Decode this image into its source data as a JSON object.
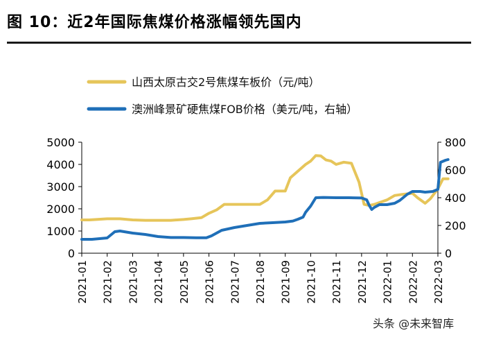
{
  "figure_title": "图  10：近2年国际焦煤价格涨幅领先国内",
  "watermark": "头条 @未来智库",
  "chart_data": {
    "type": "line",
    "title": "图  10：近2年国际焦煤价格涨幅领先国内",
    "x_categories": [
      "2021-01",
      "2021-02",
      "2021-03",
      "2021-04",
      "2021-05",
      "2021-06",
      "2021-07",
      "2021-08",
      "2021-09",
      "2021-10",
      "2021-11",
      "2021-12",
      "2022-01",
      "2022-02",
      "2022-03"
    ],
    "left_axis": {
      "min": 0,
      "max": 5000,
      "ticks": [
        "0",
        "1000",
        "2000",
        "3000",
        "4000",
        "5000"
      ]
    },
    "right_axis": {
      "min": 0,
      "max": 800,
      "ticks": [
        "0",
        "200",
        "400",
        "600",
        "800"
      ]
    },
    "legend_position": "top-left",
    "series": [
      {
        "name": "山西太原古交2号焦煤车板价（元/吨）",
        "axis": "left",
        "color": "#E6C55A",
        "x": [
          0,
          0.3,
          1,
          1.5,
          2,
          2.5,
          3,
          3.5,
          4,
          4.3,
          4.7,
          5,
          5.3,
          5.6,
          6,
          6.5,
          7,
          7.3,
          7.6,
          8,
          8.2,
          8.5,
          8.8,
          9,
          9.2,
          9.4,
          9.6,
          9.8,
          10,
          10.3,
          10.6,
          10.9,
          11.1,
          11.3,
          11.5,
          12,
          12.3,
          12.6,
          13,
          13.2,
          13.5,
          13.7,
          14,
          14.2,
          14.4
        ],
        "y": [
          1500,
          1500,
          1550,
          1550,
          1500,
          1480,
          1480,
          1480,
          1520,
          1550,
          1600,
          1800,
          1950,
          2200,
          2200,
          2200,
          2200,
          2400,
          2800,
          2800,
          3400,
          3700,
          4000,
          4150,
          4400,
          4380,
          4200,
          4150,
          4000,
          4100,
          4050,
          3200,
          2200,
          2150,
          2200,
          2400,
          2600,
          2650,
          2700,
          2500,
          2250,
          2450,
          2900,
          3350,
          3350
        ]
      },
      {
        "name": "澳洲峰景矿硬焦煤FOB价格（美元/吨，右轴）",
        "axis": "right",
        "color": "#1F6FB8",
        "x": [
          0,
          0.4,
          1,
          1.3,
          1.5,
          2,
          2.5,
          3,
          3.5,
          4,
          4.5,
          4.9,
          5.1,
          5.5,
          6,
          6.5,
          7,
          7.5,
          8,
          8.3,
          8.5,
          8.7,
          8.8,
          9,
          9.2,
          9.5,
          10,
          10.5,
          11,
          11.2,
          11.3,
          11.4,
          11.5,
          11.7,
          12,
          12.3,
          12.5,
          12.8,
          13,
          13.3,
          13.5,
          13.8,
          14,
          14.1,
          14.3,
          14.4
        ],
        "y": [
          100,
          100,
          110,
          155,
          160,
          145,
          135,
          120,
          113,
          113,
          111,
          111,
          125,
          165,
          185,
          200,
          215,
          220,
          225,
          232,
          245,
          260,
          295,
          340,
          400,
          402,
          400,
          400,
          398,
          385,
          345,
          315,
          330,
          350,
          350,
          360,
          380,
          425,
          445,
          445,
          440,
          445,
          460,
          655,
          670,
          675
        ]
      }
    ]
  }
}
